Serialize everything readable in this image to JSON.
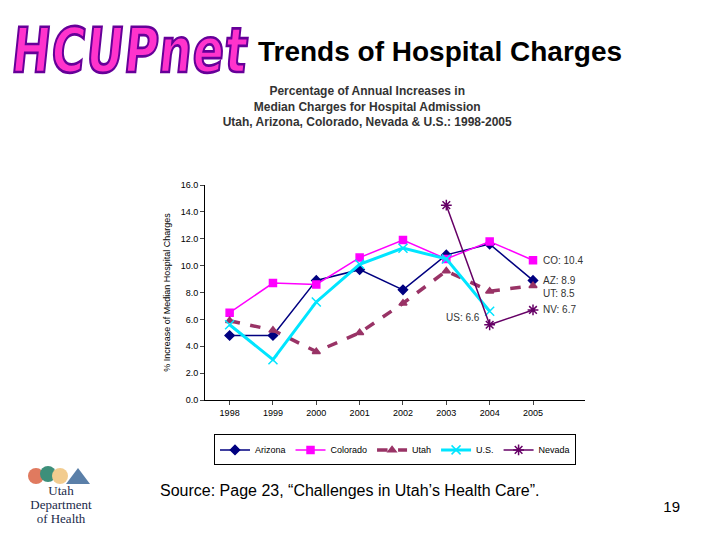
{
  "slide": {
    "title": "Trends of Hospital Charges",
    "logo": "HCUPnet",
    "source": "Source: Page 23, “Challenges in Utah’s Health Care”.",
    "page_number": "19",
    "organization": [
      "Utah",
      "Department",
      "of Health"
    ]
  },
  "chart_data": {
    "type": "line",
    "title": "Percentage of Annual Increases in\nMedian Charges for Hospital Admission\nUtah, Arizona, Colorado, Nevada & U.S.: 1998-2005",
    "y_label": "% Increase of Median Hospital Charges",
    "categories": [
      "1998",
      "1999",
      "2000",
      "2001",
      "2002",
      "2003",
      "2004",
      "2005"
    ],
    "series": [
      {
        "name": "Arizona",
        "color": "#000080",
        "marker": "diamond",
        "line_style": "solid",
        "values": [
          4.8,
          4.8,
          8.9,
          9.7,
          8.2,
          10.8,
          11.6,
          8.9
        ]
      },
      {
        "name": "Colorado",
        "color": "#ff00ff",
        "marker": "square",
        "line_style": "solid",
        "values": [
          6.5,
          8.7,
          8.6,
          10.6,
          11.9,
          10.5,
          11.8,
          10.4
        ]
      },
      {
        "name": "Utah",
        "color": "#993366",
        "marker": "triangle",
        "line_style": "dash",
        "values": [
          5.9,
          5.2,
          3.6,
          5.0,
          7.2,
          9.6,
          8.1,
          8.5
        ]
      },
      {
        "name": "U.S.",
        "color": "#00e5ff",
        "marker": "x",
        "line_style": "solid",
        "values": [
          5.6,
          3.0,
          7.3,
          10.1,
          11.3,
          10.5,
          6.6,
          null
        ]
      },
      {
        "name": "Nevada",
        "color": "#660066",
        "marker": "asterisk",
        "line_style": "solid",
        "values": [
          null,
          null,
          null,
          null,
          null,
          14.5,
          5.6,
          6.7
        ]
      }
    ],
    "ylim": [
      0,
      16
    ],
    "yticks": [
      {
        "value": 0,
        "label": "0.0"
      },
      {
        "value": 2,
        "label": "2.0"
      },
      {
        "value": 4,
        "label": "4.0"
      },
      {
        "value": 6,
        "label": "6.0"
      },
      {
        "value": 8,
        "label": "8.0"
      },
      {
        "value": 10,
        "label": "10.0"
      },
      {
        "value": 12,
        "label": "12.0"
      },
      {
        "value": 14,
        "label": "14.0"
      },
      {
        "value": 16,
        "label": "16.0"
      }
    ],
    "grid": false,
    "legend": "bottom",
    "annotations": [
      {
        "text": "CO: 10.4",
        "series": "Colorado",
        "category": "2005"
      },
      {
        "text": "AZ: 8.9",
        "series": "Arizona",
        "category": "2005"
      },
      {
        "text": "UT: 8.5",
        "series": "Utah",
        "category": "2005"
      },
      {
        "text": "NV: 6.7",
        "series": "Nevada",
        "category": "2005"
      },
      {
        "text": "US: 6.6",
        "series": "U.S.",
        "category": "2004"
      }
    ]
  }
}
